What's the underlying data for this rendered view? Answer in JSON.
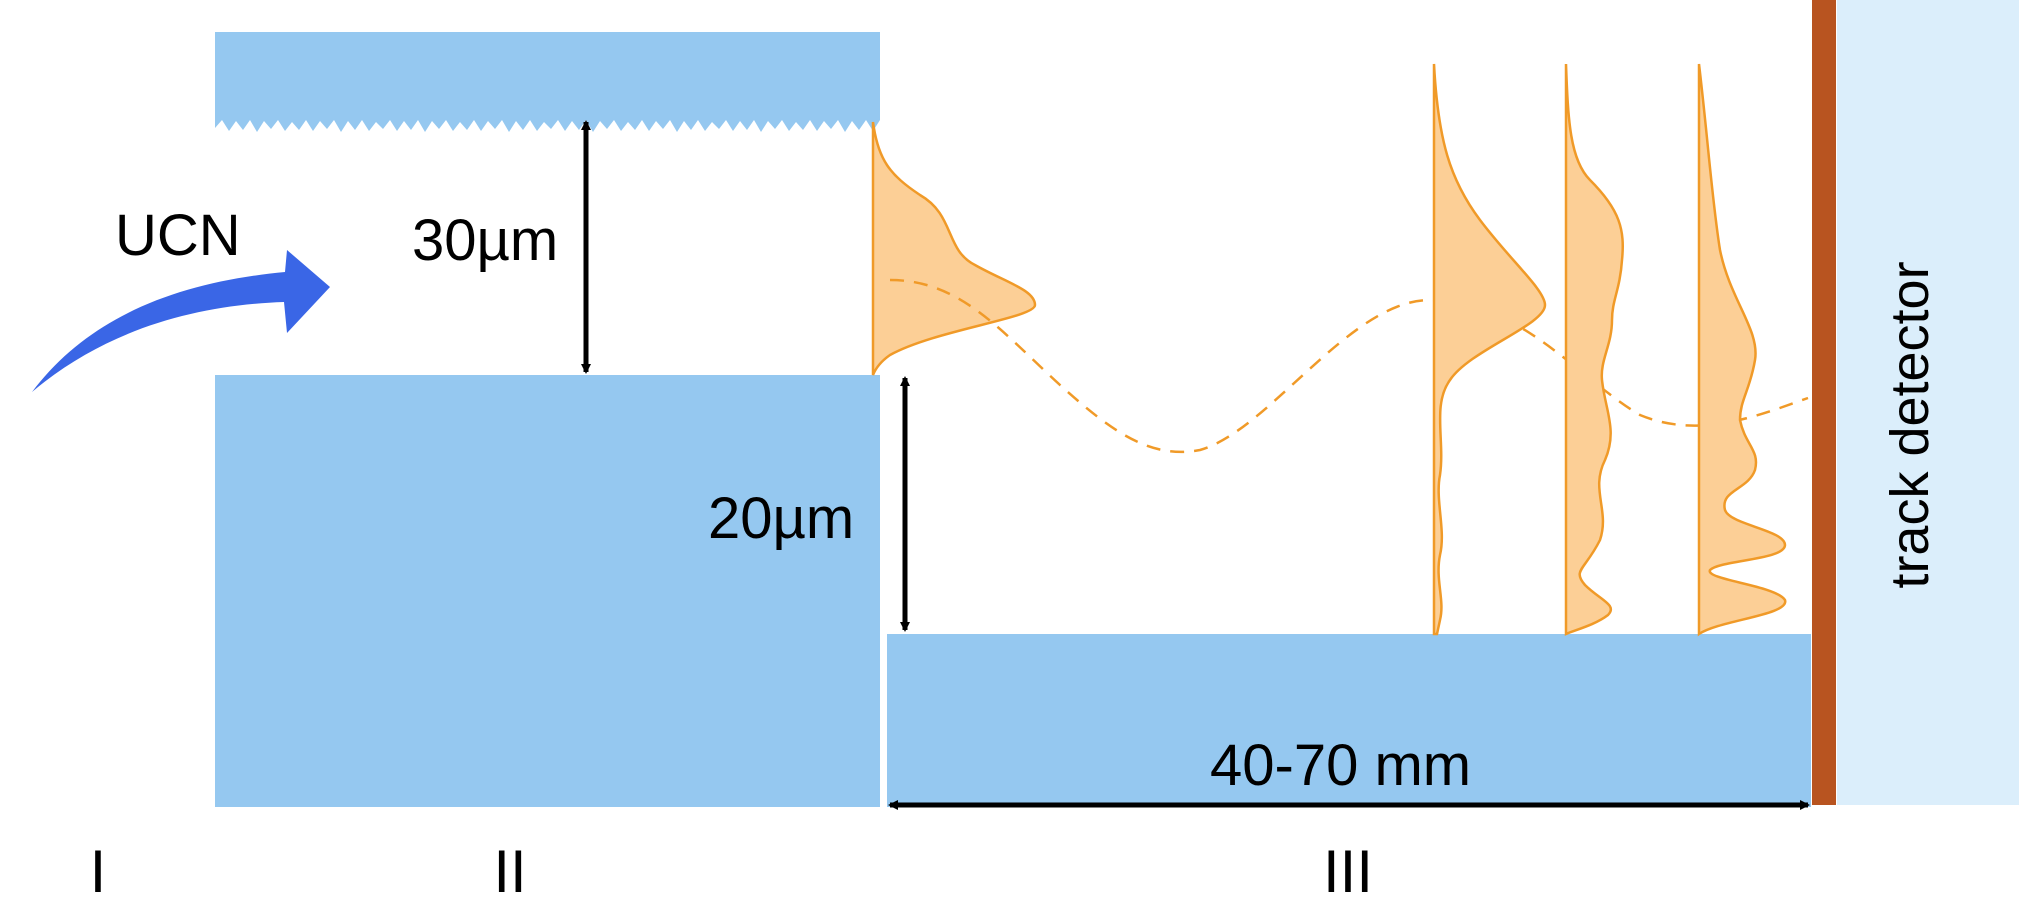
{
  "labels": {
    "ucn": "UCN",
    "gap_upper": "30µm",
    "step_height": "20µm",
    "length": "40-70 mm",
    "detector": "track detector",
    "region_1": "I",
    "region_2": "II",
    "region_3": "III"
  },
  "colors": {
    "mirror": "#95c8f0",
    "detector_panel": "#dbeefb",
    "detector_edge": "#b85420",
    "wavefunction_fill": "#fccf96",
    "wavefunction_line": "#f09a28",
    "arrow_blue": "#3a66e6",
    "dimension": "#000000"
  }
}
